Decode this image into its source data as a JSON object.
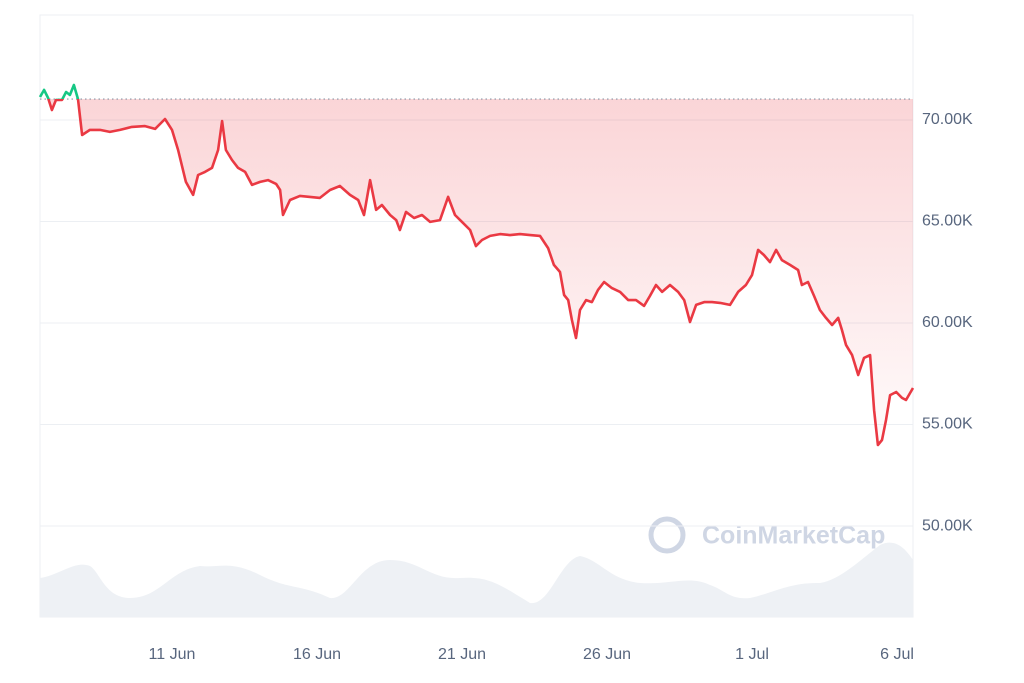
{
  "chart_data": {
    "type": "line",
    "watermark": "CoinMarketCap",
    "baseline": 71030,
    "up_color": "#16c784",
    "down_color": "#ea3943",
    "xlim": [
      6.45,
      36.55
    ],
    "ylim": [
      45520,
      75170
    ],
    "xticks": [
      {
        "value": 11,
        "label": "11 Jun"
      },
      {
        "value": 16,
        "label": "16 Jun"
      },
      {
        "value": 21,
        "label": "21 Jun"
      },
      {
        "value": 26,
        "label": "26 Jun"
      },
      {
        "value": 31,
        "label": "1 Jul"
      },
      {
        "value": 36,
        "label": "6 Jul"
      }
    ],
    "yticks": [
      {
        "value": 50000,
        "label": "50.00K"
      },
      {
        "value": 55000,
        "label": "55.00K"
      },
      {
        "value": 60000,
        "label": "60.00K"
      },
      {
        "value": 65000,
        "label": "65.00K"
      },
      {
        "value": 70000,
        "label": "70.00K"
      }
    ],
    "grid": true,
    "x": [
      6.45,
      6.59,
      6.73,
      6.86,
      7.0,
      7.21,
      7.35,
      7.48,
      7.62,
      7.76,
      7.9,
      8.17,
      8.52,
      8.86,
      9.21,
      9.62,
      10.07,
      10.42,
      10.76,
      11.0,
      11.21,
      11.48,
      11.73,
      11.9,
      12.14,
      12.38,
      12.59,
      12.73,
      12.86,
      13.07,
      13.28,
      13.52,
      13.76,
      14.04,
      14.31,
      14.59,
      14.73,
      14.83,
      15.07,
      15.41,
      15.76,
      16.1,
      16.45,
      16.79,
      17.14,
      17.42,
      17.62,
      17.83,
      18.04,
      18.24,
      18.52,
      18.73,
      18.86,
      19.07,
      19.35,
      19.62,
      19.9,
      20.24,
      20.52,
      20.76,
      21.0,
      21.28,
      21.48,
      21.69,
      21.97,
      22.31,
      22.66,
      23.0,
      23.35,
      23.69,
      23.97,
      24.17,
      24.38,
      24.52,
      24.66,
      24.79,
      24.93,
      25.07,
      25.28,
      25.48,
      25.69,
      25.9,
      26.17,
      26.45,
      26.73,
      27.0,
      27.28,
      27.48,
      27.69,
      27.9,
      28.17,
      28.45,
      28.66,
      28.86,
      29.07,
      29.35,
      29.62,
      29.9,
      30.24,
      30.52,
      30.79,
      31.0,
      31.21,
      31.41,
      31.62,
      31.83,
      32.03,
      32.31,
      32.59,
      32.72,
      32.93,
      33.14,
      33.34,
      33.55,
      33.76,
      33.97,
      34.1,
      34.24,
      34.45,
      34.66,
      34.86,
      35.07,
      35.21,
      35.34,
      35.48,
      35.62,
      35.76,
      35.97,
      36.17,
      36.31,
      36.55
    ],
    "values": [
      71130,
      71480,
      71080,
      70490,
      70990,
      70990,
      71380,
      71230,
      71720,
      71030,
      69260,
      69510,
      69510,
      69410,
      69510,
      69660,
      69700,
      69560,
      70050,
      69510,
      68520,
      66950,
      66310,
      67290,
      67440,
      67640,
      68520,
      69950,
      68520,
      68030,
      67640,
      67440,
      66800,
      66950,
      67040,
      66850,
      66550,
      65320,
      66060,
      66260,
      66210,
      66160,
      66550,
      66750,
      66310,
      66060,
      65320,
      67040,
      65570,
      65810,
      65320,
      65070,
      64580,
      65470,
      65170,
      65320,
      64980,
      65070,
      66210,
      65320,
      64980,
      64580,
      63790,
      64090,
      64290,
      64380,
      64330,
      64380,
      64330,
      64290,
      63690,
      62860,
      62510,
      61380,
      61130,
      60150,
      59260,
      60640,
      61130,
      61030,
      61630,
      62020,
      61720,
      61530,
      61130,
      61130,
      60840,
      61330,
      61870,
      61530,
      61870,
      61530,
      61130,
      60050,
      60890,
      61030,
      61030,
      60990,
      60890,
      61530,
      61870,
      62360,
      63600,
      63350,
      63000,
      63600,
      63100,
      62860,
      62610,
      61870,
      62020,
      61330,
      60640,
      60250,
      59900,
      60250,
      59660,
      58920,
      58420,
      57440,
      58280,
      58420,
      55710,
      53990,
      54240,
      55220,
      56450,
      56600,
      56310,
      56210,
      56800
    ]
  }
}
